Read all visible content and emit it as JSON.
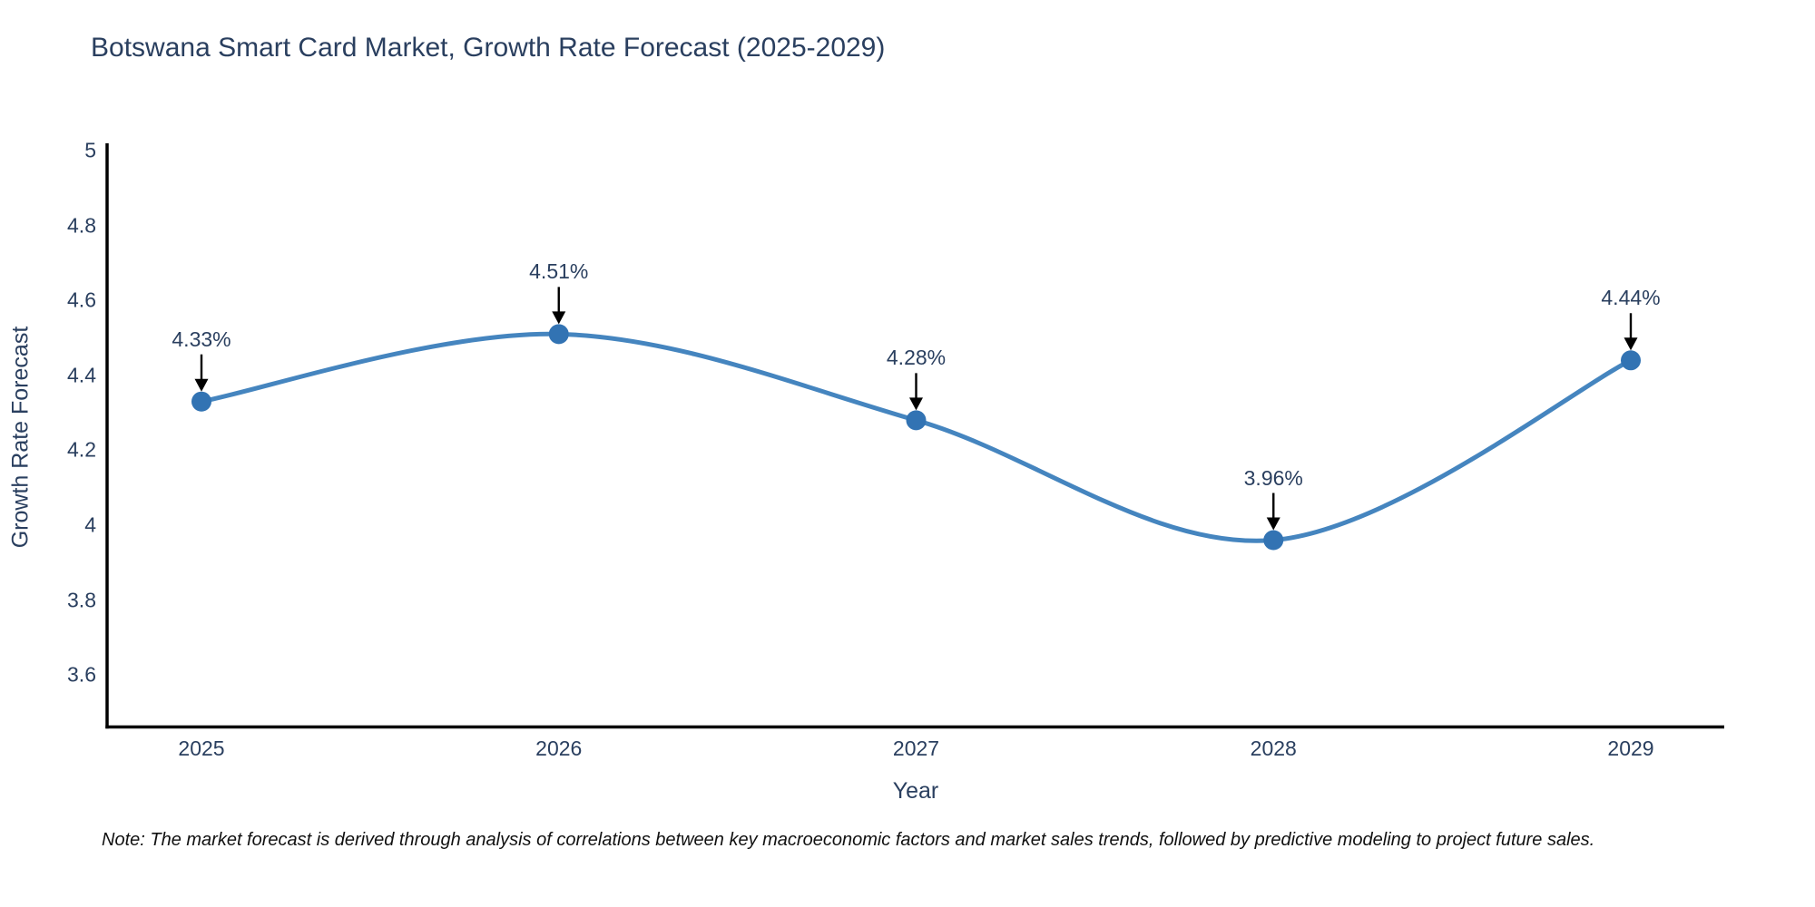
{
  "page": {
    "note": "Note: The market forecast is derived through analysis of correlations between key macroeconomic factors and market sales trends, followed by predictive modeling to project future sales."
  },
  "chart_data": {
    "type": "line",
    "title": "Botswana Smart Card Market, Growth Rate Forecast (2025-2029)",
    "xlabel": "Year",
    "ylabel": "Growth Rate Forecast",
    "categories": [
      "2025",
      "2026",
      "2027",
      "2028",
      "2029"
    ],
    "values": [
      4.33,
      4.51,
      4.28,
      3.96,
      4.44
    ],
    "point_labels": [
      "4.33%",
      "4.51%",
      "4.28%",
      "3.96%",
      "4.44%"
    ],
    "y_ticks": [
      "5",
      "4.8",
      "4.6",
      "4.4",
      "4.2",
      "4",
      "3.8",
      "3.6"
    ],
    "y_tick_values": [
      5,
      4.8,
      4.6,
      4.4,
      4.2,
      4.0,
      3.8,
      3.6
    ],
    "ylim": [
      3.45,
      5.0
    ],
    "grid": false,
    "legend": "none",
    "line_shape": "spline",
    "annotation_style": "label-with-down-arrow",
    "colors": {
      "line": "#4585bf",
      "marker": "#3273b3",
      "label_text": "#2a3f5f",
      "axis_line": "#000000",
      "arrow": "#000000",
      "background": "#ffffff"
    }
  }
}
